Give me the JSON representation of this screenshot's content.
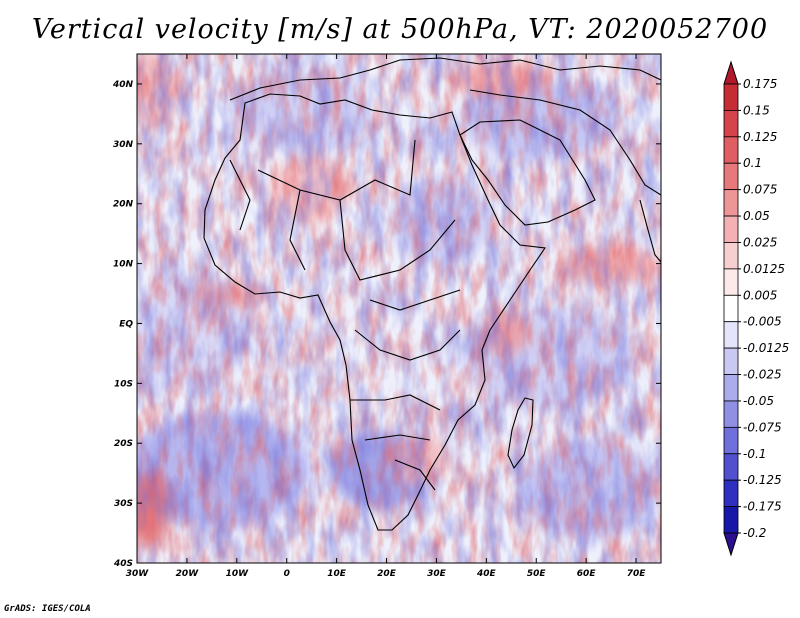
{
  "title": "Vertical velocity [m/s] at 500hPa, VT: 2020052700",
  "footer": "GrADS: IGES/COLA",
  "map": {
    "x_ticks": [
      "30W",
      "20W",
      "10W",
      "0",
      "10E",
      "20E",
      "30E",
      "40E",
      "50E",
      "60E",
      "70E"
    ],
    "y_ticks": [
      "40N",
      "30N",
      "20N",
      "10N",
      "EQ",
      "10S",
      "20S",
      "30S",
      "40S"
    ],
    "lon_range": [
      -30,
      75
    ],
    "lat_range": [
      -40,
      45
    ]
  },
  "colorbar": {
    "labels": [
      "0.175",
      "0.15",
      "0.125",
      "0.1",
      "0.075",
      "0.05",
      "0.025",
      "0.0125",
      "0.005",
      "-0.005",
      "-0.0125",
      "-0.025",
      "-0.05",
      "-0.075",
      "-0.1",
      "-0.125",
      "-0.175",
      "-0.2"
    ],
    "colors": [
      "#b2182b",
      "#c62c34",
      "#d6434a",
      "#e05d63",
      "#e7797d",
      "#ee9598",
      "#f3b1b3",
      "#f8cfd0",
      "#fde9ea",
      "#ffffff",
      "#e4e4fa",
      "#c8c8f3",
      "#acacec",
      "#8f8fe4",
      "#7070dc",
      "#5151d0",
      "#3030c0",
      "#1818a8",
      "#2b0f8f"
    ]
  }
}
